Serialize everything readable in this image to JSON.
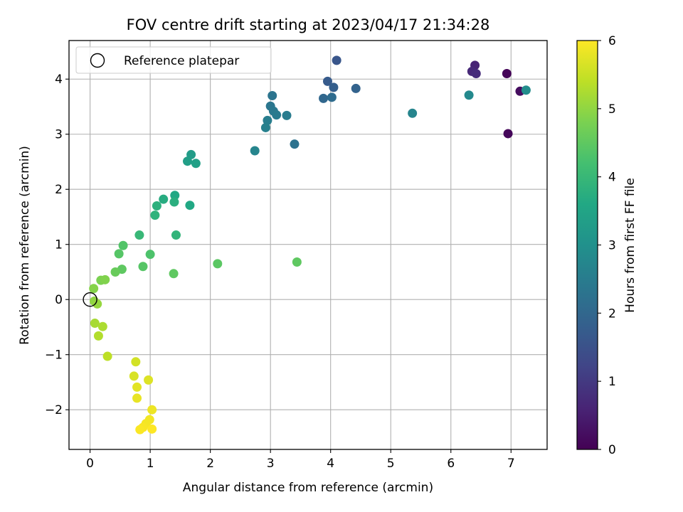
{
  "chart_data": {
    "type": "scatter",
    "title": "FOV centre drift starting at 2023/04/17 21:34:28",
    "xlabel": "Angular distance from reference (arcmin)",
    "ylabel": "Rotation from reference (arcmin)",
    "xlim": [
      -0.35,
      7.6
    ],
    "ylim": [
      -2.72,
      4.7
    ],
    "xticks": [
      0,
      1,
      2,
      3,
      4,
      5,
      6,
      7
    ],
    "yticks": [
      -2,
      -1,
      0,
      1,
      2,
      3,
      4
    ],
    "xtick_labels": [
      "0",
      "1",
      "2",
      "3",
      "4",
      "5",
      "6",
      "7"
    ],
    "ytick_labels": [
      "−2",
      "−1",
      "0",
      "1",
      "2",
      "3",
      "4"
    ],
    "grid": true,
    "colorbar": {
      "label": "Hours from first FF file",
      "range": [
        0,
        6
      ],
      "ticks": [
        0,
        1,
        2,
        3,
        4,
        5,
        6
      ],
      "tick_labels": [
        "0",
        "1",
        "2",
        "3",
        "4",
        "5",
        "6"
      ],
      "colormap": "viridis"
    },
    "legend": {
      "position": "top-left",
      "entries": [
        "Reference platepar"
      ]
    },
    "reference_point": {
      "name": "Reference platepar",
      "x": 0,
      "y": 0
    },
    "series": [
      {
        "points": [
          [
            6.93,
            4.1,
            0.05
          ],
          [
            6.95,
            3.01,
            0.1
          ],
          [
            7.15,
            3.78,
            0.2
          ],
          [
            7.25,
            3.8,
            2.9
          ],
          [
            6.4,
            4.25,
            0.6
          ],
          [
            6.35,
            4.14,
            0.7
          ],
          [
            6.42,
            4.1,
            0.75
          ],
          [
            6.3,
            3.71,
            2.8
          ],
          [
            5.36,
            3.38,
            2.7
          ],
          [
            4.1,
            4.34,
            1.6
          ],
          [
            3.95,
            3.96,
            1.7
          ],
          [
            4.05,
            3.85,
            1.8
          ],
          [
            4.42,
            3.83,
            1.9
          ],
          [
            3.88,
            3.65,
            2.0
          ],
          [
            4.02,
            3.67,
            2.1
          ],
          [
            3.03,
            3.7,
            2.3
          ],
          [
            3.0,
            3.51,
            2.35
          ],
          [
            3.05,
            3.42,
            2.4
          ],
          [
            3.1,
            3.35,
            2.45
          ],
          [
            3.27,
            3.34,
            2.5
          ],
          [
            2.95,
            3.25,
            2.55
          ],
          [
            2.92,
            3.12,
            2.6
          ],
          [
            2.74,
            2.7,
            2.7
          ],
          [
            3.4,
            2.82,
            2.25
          ],
          [
            1.68,
            2.63,
            3.3
          ],
          [
            1.62,
            2.51,
            3.35
          ],
          [
            1.76,
            2.47,
            3.4
          ],
          [
            1.41,
            1.89,
            3.6
          ],
          [
            1.22,
            1.82,
            3.7
          ],
          [
            1.4,
            1.77,
            3.75
          ],
          [
            1.11,
            1.7,
            3.8
          ],
          [
            1.66,
            1.71,
            3.6
          ],
          [
            1.08,
            1.53,
            3.85
          ],
          [
            1.43,
            1.17,
            3.9
          ],
          [
            0.82,
            1.17,
            4.0
          ],
          [
            0.55,
            0.98,
            4.35
          ],
          [
            0.48,
            0.83,
            4.4
          ],
          [
            1.0,
            0.82,
            4.3
          ],
          [
            0.53,
            0.55,
            4.5
          ],
          [
            0.88,
            0.6,
            4.4
          ],
          [
            0.42,
            0.5,
            4.6
          ],
          [
            1.39,
            0.47,
            4.5
          ],
          [
            2.12,
            0.65,
            4.45
          ],
          [
            3.44,
            0.68,
            4.5
          ],
          [
            0.18,
            0.35,
            4.8
          ],
          [
            0.25,
            0.36,
            4.85
          ],
          [
            0.06,
            0.2,
            4.9
          ],
          [
            0.07,
            -0.03,
            5.0
          ],
          [
            0.12,
            -0.08,
            5.05
          ],
          [
            0.08,
            -0.43,
            5.2
          ],
          [
            0.21,
            -0.49,
            5.25
          ],
          [
            0.14,
            -0.66,
            5.3
          ],
          [
            0.29,
            -1.03,
            5.4
          ],
          [
            0.76,
            -1.13,
            5.6
          ],
          [
            0.73,
            -1.39,
            5.65
          ],
          [
            0.97,
            -1.46,
            5.7
          ],
          [
            0.78,
            -1.59,
            5.75
          ],
          [
            0.78,
            -1.79,
            5.8
          ],
          [
            1.03,
            -2.0,
            5.85
          ],
          [
            0.99,
            -2.18,
            5.9
          ],
          [
            0.93,
            -2.25,
            5.92
          ],
          [
            0.88,
            -2.32,
            5.95
          ],
          [
            0.83,
            -2.36,
            5.97
          ],
          [
            1.03,
            -2.35,
            6.0
          ]
        ]
      }
    ]
  }
}
